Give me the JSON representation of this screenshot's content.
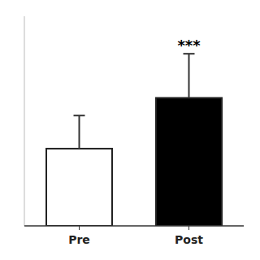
{
  "chart_data": {
    "type": "bar",
    "categories": [
      "Pre",
      "Post"
    ],
    "values": [
      3.5,
      5.8
    ],
    "errors": [
      1.5,
      2.0
    ],
    "colors": [
      "white",
      "black"
    ],
    "ylim": [
      0,
      9.5
    ],
    "tick_labels": "x",
    "annotations": [
      {
        "text": "***",
        "category": "Post"
      }
    ]
  }
}
